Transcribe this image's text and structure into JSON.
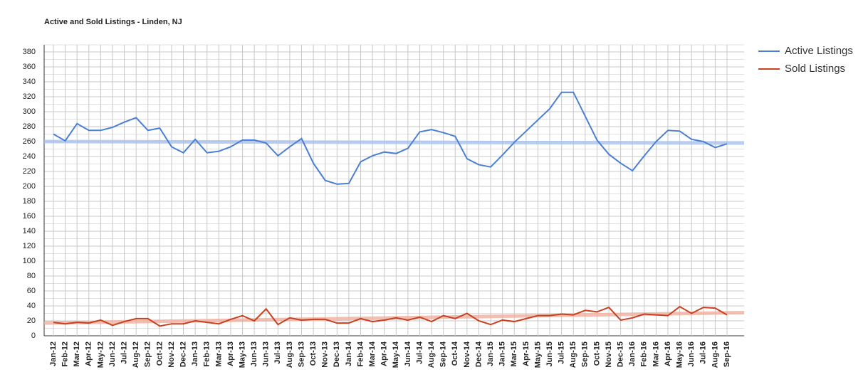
{
  "chart_data": {
    "type": "line",
    "title": "Active and Sold Listings - Linden, NJ",
    "categories": [
      "Jan-12",
      "Feb-12",
      "Mar-12",
      "Apr-12",
      "May-12",
      "Jun-12",
      "Jul-12",
      "Aug-12",
      "Sep-12",
      "Oct-12",
      "Nov-12",
      "Dec-12",
      "Jan-13",
      "Feb-13",
      "Mar-13",
      "Apr-13",
      "May-13",
      "Jun-13",
      "Jun-13",
      "Jul-13",
      "Aug-13",
      "Sep-13",
      "Oct-13",
      "Nov-13",
      "Dec-13",
      "Jan-14",
      "Feb-14",
      "Mar-14",
      "Apr-14",
      "May-14",
      "Jun-14",
      "Jul-14",
      "Aug-14",
      "Sep-14",
      "Oct-14",
      "Nov-14",
      "Dec-14",
      "Jan-15",
      "Jan-15",
      "Mar-15",
      "Apr-15",
      "May-15",
      "Jun-15",
      "Jul-15",
      "Aug-15",
      "Sep-15",
      "Oct-15",
      "Nov-15",
      "Dec-15",
      "Jan-16",
      "Feb-16",
      "Mar-16",
      "Apr-16",
      "May-16",
      "Jun-16",
      "Jul-16",
      "Aug-16",
      "Sep-16"
    ],
    "series": [
      {
        "name": "Active Listings",
        "color": "#4a7fd4",
        "trend_color": "#a9c3ef",
        "trendline": [
          260,
          258
        ],
        "values": [
          270,
          261,
          284,
          275,
          275,
          279,
          286,
          292,
          275,
          278,
          253,
          245,
          263,
          245,
          247,
          253,
          262,
          262,
          258,
          241,
          253,
          264,
          231,
          208,
          203,
          204,
          233,
          241,
          246,
          244,
          251,
          273,
          276,
          272,
          267,
          237,
          229,
          226,
          242,
          259,
          274,
          289,
          304,
          326,
          326,
          294,
          262,
          243,
          231,
          221,
          241,
          260,
          275,
          274,
          263,
          260,
          252,
          257
        ]
      },
      {
        "name": "Sold Listings",
        "color": "#c8401f",
        "trend_color": "#f0b0a0",
        "trendline": [
          17,
          31
        ],
        "values": [
          18,
          16,
          18,
          17,
          21,
          14,
          19,
          23,
          23,
          13,
          16,
          16,
          20,
          18,
          16,
          22,
          27,
          20,
          36,
          15,
          24,
          21,
          22,
          22,
          17,
          17,
          23,
          19,
          21,
          24,
          21,
          25,
          19,
          27,
          23,
          30,
          20,
          15,
          21,
          19,
          23,
          27,
          27,
          29,
          28,
          34,
          32,
          38,
          21,
          24,
          29,
          28,
          27,
          39,
          30,
          38,
          37,
          28
        ]
      }
    ],
    "ylim": [
      0,
      380
    ],
    "yticks": [
      0,
      20,
      40,
      60,
      80,
      100,
      120,
      140,
      160,
      180,
      200,
      220,
      240,
      260,
      280,
      300,
      320,
      340,
      360,
      380
    ],
    "grid": true,
    "legend": "right"
  }
}
